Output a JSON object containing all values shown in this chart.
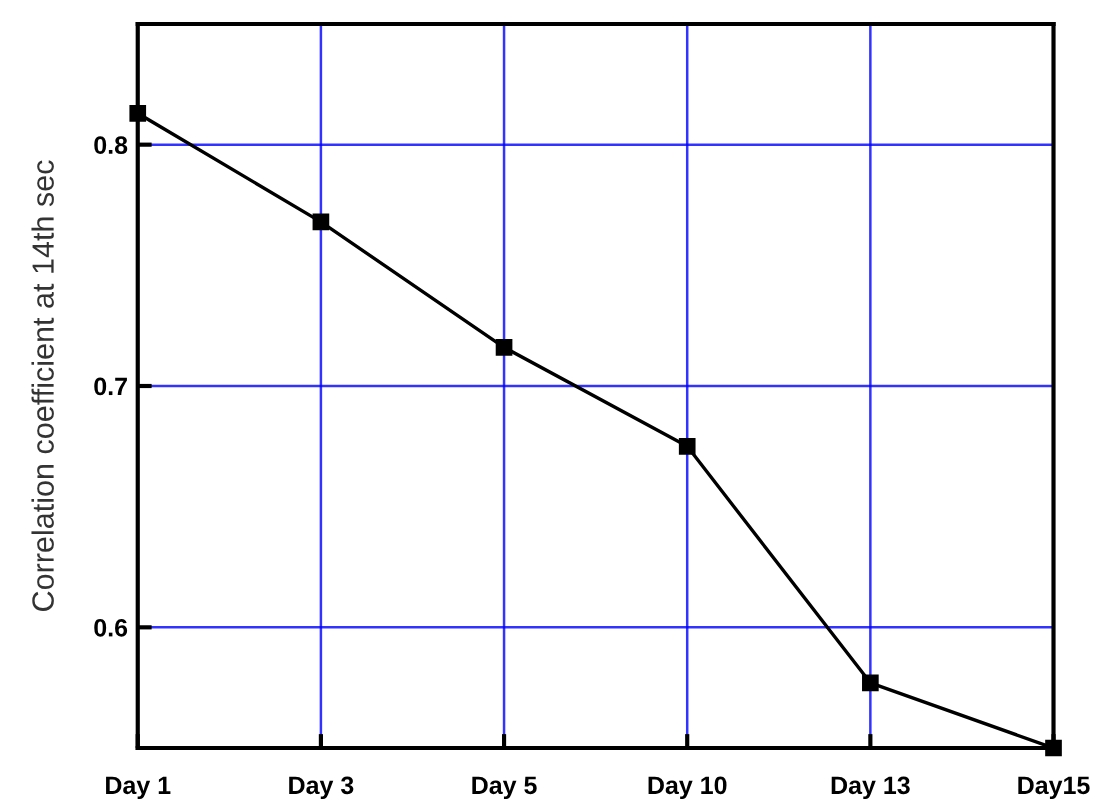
{
  "chart_data": {
    "type": "line",
    "ylabel": "Correlation coefficient at 14th sec",
    "categories": [
      "Day 1",
      "Day 3",
      "Day 5",
      "Day 10",
      "Day 13",
      "Day15"
    ],
    "series": [
      {
        "color": "#000000",
        "values": [
          0.813,
          0.768,
          0.716,
          0.675,
          0.577,
          0.55
        ]
      }
    ],
    "ylim": [
      0.55,
      0.85
    ],
    "yticks": [
      0.6,
      0.7,
      0.8
    ],
    "grid": true,
    "marker": "square",
    "line_style": "solid"
  }
}
